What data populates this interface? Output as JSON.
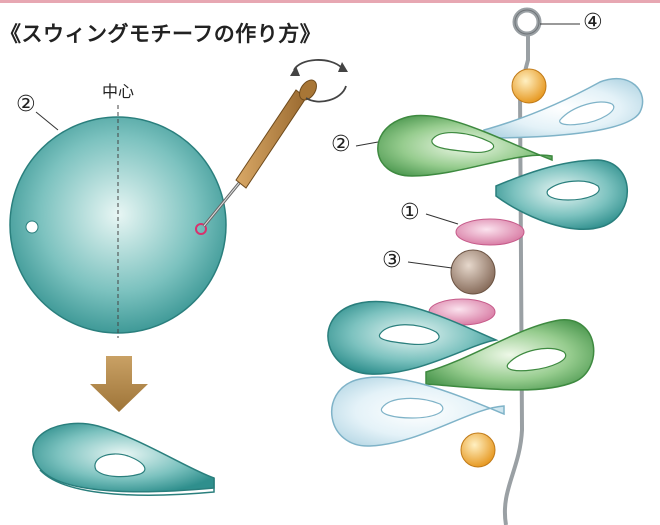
{
  "title": "《スウィングモチーフの作り方》",
  "left_panel": {
    "center_label": "中心",
    "circle_number": "②",
    "arrow_icon": "down-arrow-icon",
    "tool_icon": "awl-tool-icon",
    "rotate_icon": "rotate-arrow-icon"
  },
  "right_panel": {
    "labels": {
      "ring": "④",
      "petal_green": "②",
      "bead_pink": "①",
      "bead_brown": "③"
    }
  },
  "colors": {
    "accent_rule": "#e7a7b2",
    "teal": "#3a9c9a",
    "green": "#6bb06b",
    "light_blue": "#d6ecf4",
    "pink": "#e79ab8",
    "brown_bead": "#a88f7e",
    "orange_bead": "#f2b13f",
    "arrow_brown": "#b48a4a"
  }
}
